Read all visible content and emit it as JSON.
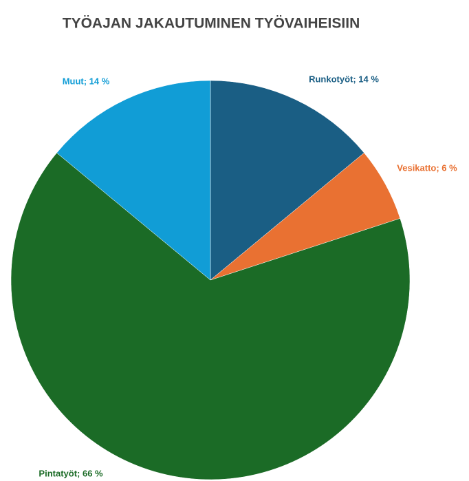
{
  "chart_data": {
    "type": "pie",
    "title": "TYÖAJAN JAKAUTUMINEN TYÖVAIHEISIIN",
    "values": [
      14,
      6,
      66,
      14
    ],
    "value_labels": [
      "Runkotyöt; 14 %",
      "Vesikatto; 6 %",
      "Pintatyöt; 66 %",
      "Muut; 14 %"
    ],
    "colors": [
      "#1a5e84",
      "#e97132",
      "#1b6b26",
      "#119dd6"
    ]
  }
}
